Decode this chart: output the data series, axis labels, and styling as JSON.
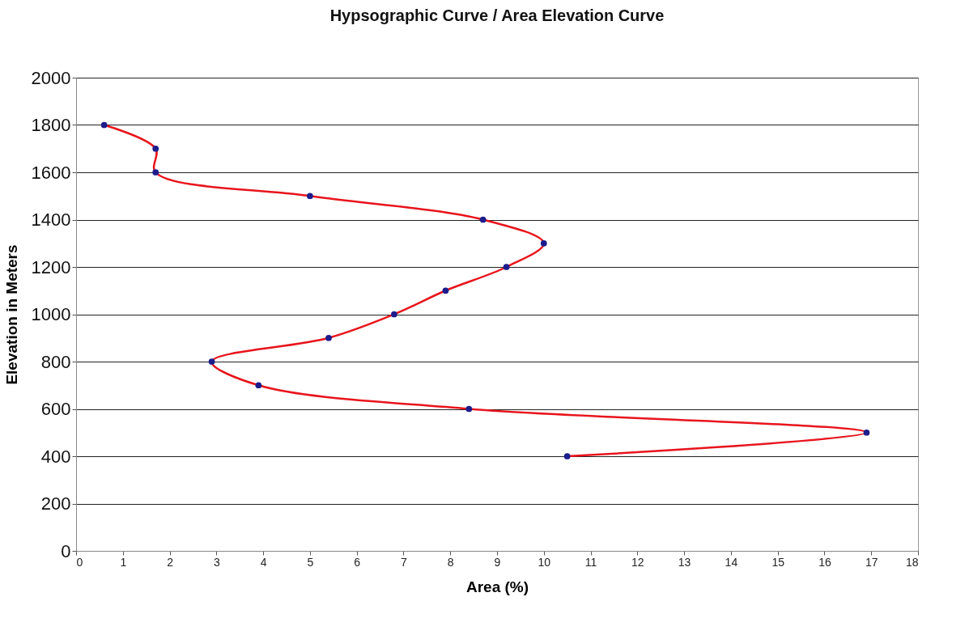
{
  "chart_data": {
    "type": "line",
    "title": "Hypsographic Curve / Area Elevation Curve",
    "xlabel": "Area (%)",
    "ylabel": "Elevation in Meters",
    "xlim": [
      0,
      18
    ],
    "xticks": [
      0,
      1,
      2,
      3,
      4,
      5,
      6,
      7,
      8,
      9,
      10,
      11,
      12,
      13,
      14,
      15,
      16,
      17,
      18
    ],
    "ylim": [
      0,
      2000
    ],
    "yticks": [
      0,
      200,
      400,
      600,
      800,
      1000,
      1200,
      1400,
      1600,
      1800,
      2000
    ],
    "grid": "y",
    "line_style": "solid",
    "series": [
      {
        "type": "line",
        "color": "#e8141c",
        "marker": "none",
        "x": [
          0.6,
          1.7,
          1.7,
          5.0,
          8.7,
          10.0,
          9.2,
          7.9,
          6.8,
          5.4,
          2.9,
          3.9,
          8.4,
          16.9,
          10.5
        ],
        "values": [
          1800,
          1700,
          1600,
          1500,
          1400,
          1300,
          1200,
          1100,
          1000,
          900,
          800,
          700,
          600,
          500,
          400
        ]
      },
      {
        "type": "scatter",
        "color": "#1c1c8c",
        "marker": "circle",
        "x": [
          0.6,
          1.7,
          1.7,
          5.0,
          8.7,
          10.0,
          9.2,
          7.9,
          6.8,
          5.4,
          2.9,
          3.9,
          8.4,
          16.9,
          10.5
        ],
        "values": [
          1800,
          1700,
          1600,
          1500,
          1400,
          1300,
          1200,
          1100,
          1000,
          900,
          800,
          700,
          600,
          500,
          400
        ]
      }
    ]
  }
}
